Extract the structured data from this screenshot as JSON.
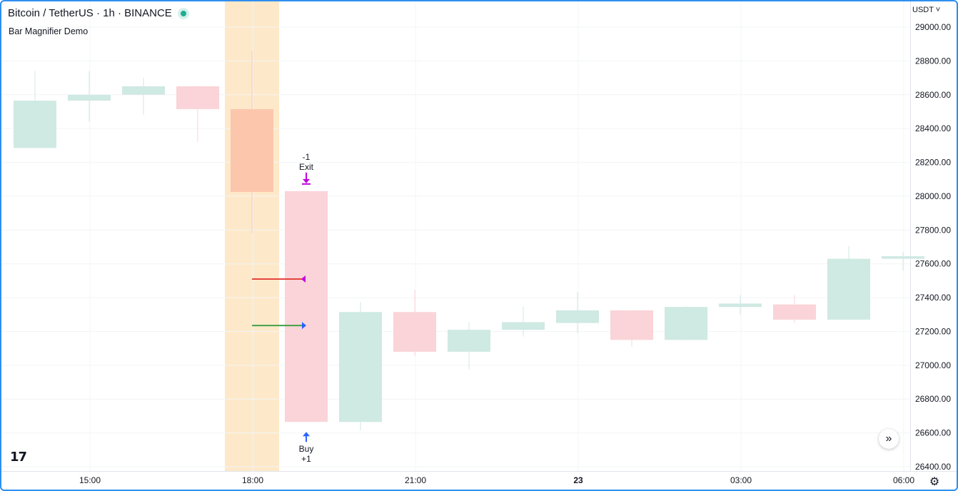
{
  "header": {
    "symbol": "Bitcoin / TetherUS · 1h · BINANCE",
    "indicator": "Bar Magnifier Demo",
    "currency": "USDT ˅"
  },
  "icons": {
    "status": "market-open-dot-icon",
    "logo": "tradingview-logo-icon",
    "scroll": "scroll-to-realtime-icon",
    "settings": "gear-icon"
  },
  "logo_text": "17",
  "scroll_glyph": "»",
  "settings_glyph": "⚙",
  "colors": {
    "up": "#cfe9e3",
    "down": "#fad4d8",
    "highlight_bar": "#fcc6ad",
    "highlight_band": "#fde9c9",
    "exit_marker": "#c400e0",
    "buy_marker": "#2962ff",
    "red_line": "#e5433d",
    "green_line": "#43a047"
  },
  "chart_data": {
    "type": "candlestick",
    "x_tick_labels": [
      "15:00",
      "18:00",
      "21:00",
      "23",
      "03:00",
      "06:00"
    ],
    "y_tick_labels": [
      "29000.00",
      "28800.00",
      "28600.00",
      "28400.00",
      "28200.00",
      "28000.00",
      "27800.00",
      "27600.00",
      "27400.00",
      "27200.00",
      "27000.00",
      "26800.00",
      "26600.00",
      "26400.00"
    ],
    "ylim": [
      26370,
      29080
    ],
    "candles": [
      {
        "time": "14:00",
        "open": 28285,
        "high": 28740,
        "low": 28285,
        "close": 28565
      },
      {
        "time": "15:00",
        "open": 28565,
        "high": 28740,
        "low": 28440,
        "close": 28600
      },
      {
        "time": "16:00",
        "open": 28600,
        "high": 28700,
        "low": 28480,
        "close": 28650
      },
      {
        "time": "17:00",
        "open": 28650,
        "high": 28650,
        "low": 28320,
        "close": 28515
      },
      {
        "time": "18:00",
        "open": 28515,
        "high": 28860,
        "low": 27780,
        "close": 28025,
        "highlight": true
      },
      {
        "time": "19:00",
        "open": 28030,
        "high": 28030,
        "low": 26665,
        "close": 26665
      },
      {
        "time": "20:00",
        "open": 26665,
        "high": 27375,
        "low": 26615,
        "close": 27315
      },
      {
        "time": "21:00",
        "open": 27315,
        "high": 27445,
        "low": 27055,
        "close": 27080
      },
      {
        "time": "22:00",
        "open": 27080,
        "high": 27255,
        "low": 26975,
        "close": 27210
      },
      {
        "time": "23:00",
        "open": 27210,
        "high": 27345,
        "low": 27170,
        "close": 27255
      },
      {
        "time": "00:00",
        "open": 27250,
        "high": 27435,
        "low": 27190,
        "close": 27325
      },
      {
        "time": "01:00",
        "open": 27325,
        "high": 27325,
        "low": 27110,
        "close": 27150
      },
      {
        "time": "02:00",
        "open": 27150,
        "high": 27350,
        "low": 27150,
        "close": 27345
      },
      {
        "time": "03:00",
        "open": 27345,
        "high": 27415,
        "low": 27300,
        "close": 27365
      },
      {
        "time": "04:00",
        "open": 27360,
        "high": 27415,
        "low": 27250,
        "close": 27270
      },
      {
        "time": "05:00",
        "open": 27270,
        "high": 27705,
        "low": 27270,
        "close": 27630
      },
      {
        "time": "06:00",
        "open": 27630,
        "high": 27670,
        "low": 27560,
        "close": 27645
      }
    ],
    "highlight_candle_index": 4,
    "signals": [
      {
        "candle_index": 5,
        "side": "exit",
        "qty_label": "-1",
        "label": "Exit"
      },
      {
        "candle_index": 5,
        "side": "buy",
        "qty_label": "+1",
        "label": "Buy"
      }
    ],
    "level_lines": [
      {
        "value": 27510,
        "color": "red"
      },
      {
        "value": 27235,
        "color": "green"
      }
    ],
    "grid": true
  }
}
